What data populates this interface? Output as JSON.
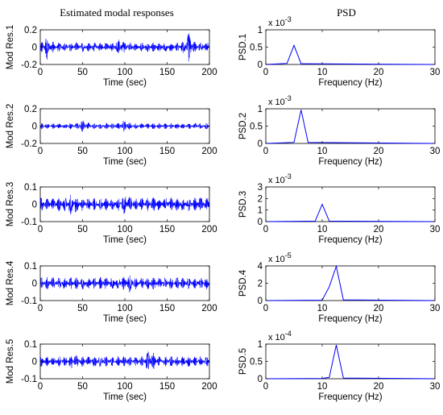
{
  "figure": {
    "left_title": "Estimated modal responses",
    "right_title": "PSD"
  },
  "chart_data": [
    {
      "type": "line",
      "ylabel": "Mod Res.1",
      "xlabel": "Time (sec)",
      "xlim": [
        0,
        200
      ],
      "ylim": [
        -0.2,
        0.2
      ],
      "xticks": [
        0,
        50,
        100,
        150,
        200
      ],
      "yticks": [
        -0.2,
        0,
        0.2
      ],
      "ytick_labels": [
        "-0.2",
        "0",
        "0.2"
      ],
      "color": "#0000ff",
      "noise": {
        "amplitude": 0.055,
        "bursts": [
          [
            8,
            0.09
          ],
          [
            175,
            0.12
          ],
          [
            95,
            0.06
          ]
        ]
      }
    },
    {
      "type": "line",
      "ylabel": "PSD.1",
      "xlabel": "Frequency (Hz)",
      "xlim": [
        0,
        30
      ],
      "ylim": [
        0,
        0.001
      ],
      "xticks": [
        0,
        10,
        20,
        30
      ],
      "yticks": [
        0,
        0.0005,
        0.001
      ],
      "ytick_labels": [
        "0",
        "0.5",
        "1"
      ],
      "exponent": "x 10^-3",
      "color": "#0000ff",
      "x": [
        0,
        3.75,
        5,
        6.25,
        30
      ],
      "y": [
        0,
        3e-05,
        0.00055,
        2e-05,
        0
      ]
    },
    {
      "type": "line",
      "ylabel": "Mod Res.2",
      "xlabel": "Time (sec)",
      "xlim": [
        0,
        200
      ],
      "ylim": [
        -0.2,
        0.2
      ],
      "xticks": [
        0,
        50,
        100,
        150,
        200
      ],
      "yticks": [
        -0.2,
        0,
        0.2
      ],
      "ytick_labels": [
        "-0.2",
        "0",
        "0.2"
      ],
      "color": "#0000ff",
      "noise": {
        "amplitude": 0.035,
        "bursts": [
          [
            50,
            0.04
          ],
          [
            100,
            0.03
          ]
        ]
      }
    },
    {
      "type": "line",
      "ylabel": "PSD.2",
      "xlabel": "Frequency (Hz)",
      "xlim": [
        0,
        30
      ],
      "ylim": [
        0,
        0.001
      ],
      "xticks": [
        0,
        10,
        20,
        30
      ],
      "yticks": [
        0,
        0.0005,
        0.001
      ],
      "ytick_labels": [
        "0",
        "0.5",
        "1"
      ],
      "exponent": "x 10^-3",
      "color": "#0000ff",
      "x": [
        0,
        5,
        6.25,
        7.5,
        30
      ],
      "y": [
        0,
        3e-05,
        0.00097,
        3e-05,
        0
      ]
    },
    {
      "type": "line",
      "ylabel": "Mod Res.3",
      "xlabel": "Time (sec)",
      "xlim": [
        0,
        200
      ],
      "ylim": [
        -0.1,
        0.1
      ],
      "xticks": [
        0,
        50,
        100,
        150,
        200
      ],
      "yticks": [
        -0.1,
        0,
        0.1
      ],
      "ytick_labels": [
        "-0.1",
        "0",
        "0.1"
      ],
      "color": "#0000ff",
      "noise": {
        "amplitude": 0.04,
        "bursts": [
          [
            38,
            0.03
          ],
          [
            100,
            0.025
          ]
        ]
      }
    },
    {
      "type": "line",
      "ylabel": "PSD.3",
      "xlabel": "Frequency (Hz)",
      "xlim": [
        0,
        30
      ],
      "ylim": [
        0,
        0.003
      ],
      "xticks": [
        0,
        10,
        20,
        30
      ],
      "yticks": [
        0,
        0.001,
        0.002,
        0.003
      ],
      "ytick_labels": [
        "0",
        "1",
        "2",
        "3"
      ],
      "exponent": "x 10^-3",
      "color": "#0000ff",
      "x": [
        0,
        8.75,
        10,
        11.25,
        30
      ],
      "y": [
        0,
        4e-05,
        0.0015,
        4e-05,
        0
      ]
    },
    {
      "type": "line",
      "ylabel": "Mod Res.4",
      "xlabel": "Time (sec)",
      "xlim": [
        0,
        200
      ],
      "ylim": [
        -0.1,
        0.1
      ],
      "xticks": [
        0,
        50,
        100,
        150,
        200
      ],
      "yticks": [
        -0.1,
        0,
        0.1
      ],
      "ytick_labels": [
        "-0.1",
        "0",
        "0.1"
      ],
      "color": "#0000ff",
      "noise": {
        "amplitude": 0.035,
        "bursts": [
          [
            105,
            0.02
          ]
        ]
      }
    },
    {
      "type": "line",
      "ylabel": "PSD.4",
      "xlabel": "Frequency (Hz)",
      "xlim": [
        0,
        30
      ],
      "ylim": [
        0,
        4e-05
      ],
      "xticks": [
        0,
        10,
        20,
        30
      ],
      "yticks": [
        0,
        2e-05,
        4e-05
      ],
      "ytick_labels": [
        "0",
        "2",
        "4"
      ],
      "exponent": "x 10^-5",
      "color": "#0000ff",
      "x": [
        0,
        10,
        11.25,
        12.5,
        13.75,
        30
      ],
      "y": [
        0,
        5e-07,
        1.6e-05,
        3.95e-05,
        8e-07,
        0
      ]
    },
    {
      "type": "line",
      "ylabel": "Mod Res.5",
      "xlabel": "Time (sec)",
      "xlim": [
        0,
        200
      ],
      "ylim": [
        -0.1,
        0.1
      ],
      "xticks": [
        0,
        50,
        100,
        150,
        200
      ],
      "yticks": [
        -0.1,
        0,
        0.1
      ],
      "ytick_labels": [
        "-0.1",
        "0",
        "0.1"
      ],
      "color": "#0000ff",
      "noise": {
        "amplitude": 0.03,
        "bursts": [
          [
            40,
            0.02
          ],
          [
            130,
            0.04
          ]
        ]
      }
    },
    {
      "type": "line",
      "ylabel": "PSD.5",
      "xlabel": "Frequency (Hz)",
      "xlim": [
        0,
        30
      ],
      "ylim": [
        0,
        0.0001
      ],
      "xticks": [
        0,
        10,
        20,
        30
      ],
      "yticks": [
        0,
        5e-05,
        0.0001
      ],
      "ytick_labels": [
        "0",
        "0.5",
        "1"
      ],
      "exponent": "x 10^-4",
      "color": "#0000ff",
      "x": [
        0,
        10,
        11.25,
        12.5,
        13.75,
        30
      ],
      "y": [
        0,
        1e-06,
        4e-06,
        9.75e-05,
        2e-06,
        0
      ]
    }
  ]
}
